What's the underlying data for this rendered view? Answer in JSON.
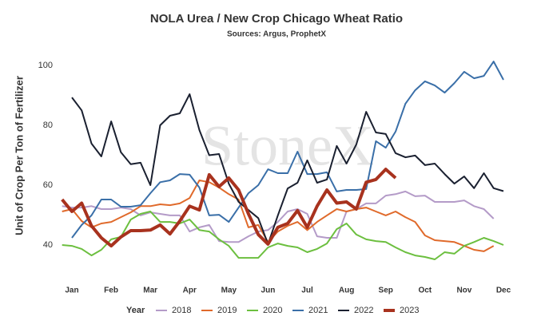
{
  "chart_data": {
    "type": "line",
    "title": "NOLA Urea / New Crop Chicago Wheat Ratio",
    "subtitle": "Sources: Argus, ProphetX",
    "y_label": "Unit of Crop Per Ton of Fertilizer",
    "watermark": "StoneX",
    "legend_title": "Year",
    "categories": [
      null,
      "Jan",
      null,
      null,
      null,
      "Feb",
      null,
      null,
      null,
      "Mar",
      null,
      null,
      null,
      "Apr",
      null,
      null,
      null,
      "May",
      null,
      null,
      null,
      "Jun",
      null,
      null,
      null,
      "Jul",
      null,
      null,
      null,
      "Aug",
      null,
      null,
      null,
      "Sep",
      null,
      null,
      null,
      "Oct",
      null,
      null,
      null,
      "Nov",
      null,
      null,
      null,
      "Dec"
    ],
    "ylim": [
      28,
      105
    ],
    "yticks": [
      40,
      60,
      80,
      100
    ],
    "grid": false,
    "legend": "bottom",
    "series": [
      {
        "name": "2018",
        "color": "#b49bc8",
        "width": 2,
        "values": [
          53,
          52.5,
          52.5,
          53,
          52,
          52,
          52.5,
          52,
          49.9,
          50.9,
          50.4,
          49.9,
          49.9,
          44.5,
          45.9,
          46.7,
          41.3,
          41,
          41,
          42.9,
          44.5,
          45,
          47.7,
          51.2,
          52,
          50.4,
          42.9,
          42.4,
          42.4,
          51.2,
          52,
          53.9,
          53.9,
          56.5,
          57,
          57.9,
          56.3,
          56.5,
          54.4,
          54.4,
          54.4,
          54.9,
          53,
          52,
          48.8,
          null
        ]
      },
      {
        "name": "2019",
        "color": "#e06a2b",
        "width": 2,
        "values": [
          51.2,
          52,
          48,
          45.9,
          47.2,
          47.7,
          49.3,
          50.9,
          53,
          53,
          53.6,
          53.3,
          53.9,
          55.7,
          61.6,
          61,
          59.2,
          57,
          55.2,
          45.9,
          46.7,
          41,
          44.5,
          46.4,
          47.7,
          45,
          47.7,
          49.9,
          52,
          51.2,
          52,
          52.5,
          51.2,
          49.9,
          51.2,
          49.3,
          47.7,
          43.2,
          41.6,
          41.3,
          41,
          39.7,
          38.4,
          37.9,
          39.7,
          null
        ]
      },
      {
        "name": "2020",
        "color": "#6cbf3f",
        "width": 2,
        "values": [
          40,
          39.7,
          38.7,
          36.5,
          38.4,
          41.9,
          42.7,
          48.5,
          50.4,
          51.2,
          47.7,
          47.7,
          47.2,
          48.5,
          45,
          44.5,
          41.9,
          39.7,
          35.7,
          35.7,
          35.7,
          39.2,
          40.5,
          39.7,
          39.2,
          37.6,
          38.7,
          40.5,
          45.3,
          47.2,
          43.5,
          41.9,
          41.3,
          41,
          39.2,
          37.6,
          36.5,
          36,
          35.2,
          37.6,
          37.1,
          39.7,
          41,
          42.4,
          41.3,
          40
        ]
      },
      {
        "name": "2021",
        "color": "#3a6fa8",
        "width": 2,
        "values": [
          null,
          42.4,
          46.7,
          49.9,
          55.2,
          55.2,
          52.8,
          52.8,
          53.3,
          57.3,
          61,
          61.6,
          63.7,
          63.5,
          59.2,
          49.9,
          50.1,
          47.7,
          52.5,
          57.3,
          60,
          65.3,
          64,
          64,
          71.2,
          63.7,
          63.7,
          64.3,
          57.9,
          58.4,
          58.4,
          58.7,
          74.7,
          72.5,
          77.9,
          87.2,
          91.7,
          94.7,
          93.3,
          90.9,
          94.1,
          97.9,
          95.7,
          96.5,
          101.3,
          95.2
        ]
      },
      {
        "name": "2022",
        "color": "#1a2030",
        "width": 2,
        "values": [
          null,
          89.3,
          85,
          73.9,
          69.6,
          81.3,
          71,
          67,
          67.5,
          60,
          80,
          83.2,
          84,
          90.4,
          78.4,
          70,
          70.4,
          60.5,
          54.4,
          51.7,
          49,
          40.3,
          49.9,
          58.9,
          60.8,
          68.3,
          60.8,
          61.9,
          73.1,
          67.2,
          73.6,
          84.5,
          77.6,
          77.1,
          70.7,
          69.3,
          69.9,
          66.7,
          67.2,
          63.7,
          60.5,
          62.9,
          59,
          64,
          59,
          58
        ]
      },
      {
        "name": "2023",
        "color": "#a8321e",
        "width": 4,
        "values": [
          55.2,
          51.2,
          54,
          46.4,
          42.4,
          39.7,
          42.7,
          44.8,
          44.8,
          45,
          46.7,
          43.7,
          48,
          53,
          51.7,
          63.5,
          59.5,
          62.4,
          58.4,
          50.4,
          43.5,
          40.3,
          45.9,
          47.2,
          51.5,
          45.9,
          53,
          58.4,
          54,
          54.4,
          52,
          61,
          61.9,
          65.3,
          62.4,
          null,
          null,
          null,
          null,
          null,
          null,
          null,
          null,
          null,
          null,
          null
        ]
      }
    ]
  }
}
